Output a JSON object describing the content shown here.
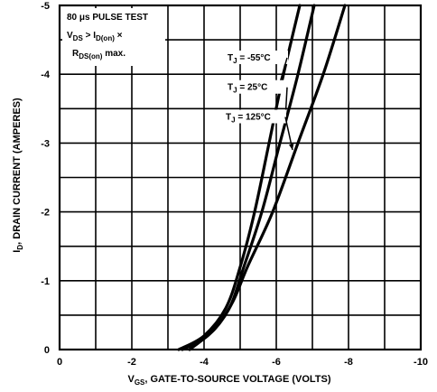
{
  "chart_data": {
    "type": "line",
    "xlabel": "V",
    "xlabel_sub": "GS",
    "xlabel_rest": ", GATE-TO-SOURCE VOLTAGE (VOLTS)",
    "ylabel": "I",
    "ylabel_sub": "D",
    "ylabel_rest": ", DRAIN CURRENT (AMPERES)",
    "xlim": [
      0,
      -10
    ],
    "ylim": [
      0,
      -5
    ],
    "grid": true,
    "x_ticks": [
      {
        "value": 0,
        "label": "0"
      },
      {
        "value": -2,
        "label": "-2"
      },
      {
        "value": -4,
        "label": "-4"
      },
      {
        "value": -6,
        "label": "-6"
      },
      {
        "value": -8,
        "label": "-8"
      },
      {
        "value": -10,
        "label": "-10"
      }
    ],
    "y_ticks": [
      {
        "value": 0,
        "label": "0"
      },
      {
        "value": -1,
        "label": "-1"
      },
      {
        "value": -2,
        "label": "-2"
      },
      {
        "value": -3,
        "label": "-3"
      },
      {
        "value": -4,
        "label": "-4"
      },
      {
        "value": -5,
        "label": "-5"
      }
    ],
    "annotation": {
      "line1": "80 μs PULSE TEST",
      "line2_main": "V",
      "line2_sub": "DS",
      "line2_mid": " > I",
      "line2_sub2": "D(on)",
      "line2_end": " ×",
      "line3_main": "R",
      "line3_sub": "DS(on)",
      "line3_end": " max."
    },
    "series": [
      {
        "name": "T_J = -55°C",
        "label_main": "T",
        "label_sub": "J",
        "label_rest": " = -55°C",
        "label_value": {
          "x": -4.65,
          "y": -4.2
        },
        "arrow_to": {
          "x": -6.0,
          "y": -3.7
        },
        "points": [
          [
            -3.3,
            0
          ],
          [
            -4.0,
            -0.2
          ],
          [
            -4.6,
            -0.6
          ],
          [
            -5.0,
            -1.2
          ],
          [
            -5.4,
            -2.0
          ],
          [
            -5.8,
            -3.0
          ],
          [
            -6.2,
            -4.0
          ],
          [
            -6.65,
            -5.0
          ]
        ]
      },
      {
        "name": "T_J = 25°C",
        "label_main": "T",
        "label_sub": "J",
        "label_rest": " = 25°C",
        "label_value": {
          "x": -4.65,
          "y": -3.77
        },
        "arrow_to": {
          "x": -6.25,
          "y": -3.35
        },
        "points": [
          [
            -3.4,
            0
          ],
          [
            -4.1,
            -0.2
          ],
          [
            -4.7,
            -0.6
          ],
          [
            -5.1,
            -1.2
          ],
          [
            -5.6,
            -2.0
          ],
          [
            -6.1,
            -3.0
          ],
          [
            -6.6,
            -4.0
          ],
          [
            -7.05,
            -5.0
          ]
        ]
      },
      {
        "name": "T_J = 125°C",
        "label_main": "T",
        "label_sub": "J",
        "label_rest": " = 125°C",
        "label_value": {
          "x": -4.6,
          "y": -3.34
        },
        "arrow_to": {
          "x": -6.45,
          "y": -2.9
        },
        "points": [
          [
            -3.6,
            0
          ],
          [
            -4.3,
            -0.3
          ],
          [
            -4.8,
            -0.7
          ],
          [
            -5.2,
            -1.2
          ],
          [
            -5.9,
            -2.0
          ],
          [
            -6.6,
            -3.0
          ],
          [
            -7.3,
            -4.0
          ],
          [
            -7.9,
            -5.0
          ]
        ]
      }
    ]
  }
}
